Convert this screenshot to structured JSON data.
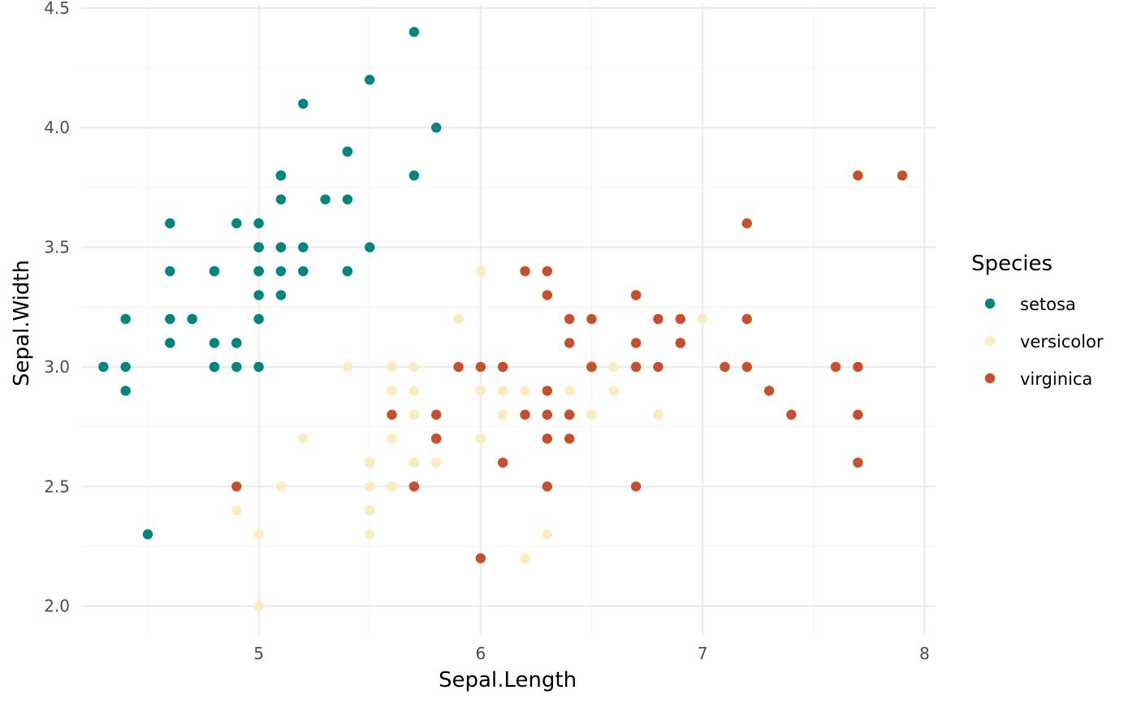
{
  "chart_data": {
    "type": "scatter",
    "title": "",
    "xlabel": "Sepal.Length",
    "ylabel": "Sepal.Width",
    "xlim": [
      4.2,
      8.05
    ],
    "ylim": [
      1.88,
      4.52
    ],
    "x_ticks": [
      5,
      6,
      7,
      8
    ],
    "x_tick_labels": [
      "5",
      "6",
      "7",
      "8"
    ],
    "x_minor_ticks": [
      4.5,
      5.5,
      6.5,
      7.5
    ],
    "y_ticks": [
      2.0,
      2.5,
      3.0,
      3.5,
      4.0,
      4.5
    ],
    "y_tick_labels": [
      "2.0",
      "2.5",
      "3.0",
      "3.5",
      "4.0",
      "4.5"
    ],
    "y_minor_ticks": [
      2.25,
      2.75,
      3.25,
      3.75,
      4.25
    ],
    "grid": true,
    "legend": {
      "title": "Species",
      "position": "right"
    },
    "series": [
      {
        "name": "setosa",
        "color": "#00857f",
        "points": [
          [
            5.1,
            3.5
          ],
          [
            4.9,
            3.0
          ],
          [
            4.7,
            3.2
          ],
          [
            4.6,
            3.1
          ],
          [
            5.0,
            3.6
          ],
          [
            5.4,
            3.9
          ],
          [
            4.6,
            3.4
          ],
          [
            5.0,
            3.4
          ],
          [
            4.4,
            2.9
          ],
          [
            4.9,
            3.1
          ],
          [
            5.4,
            3.7
          ],
          [
            4.8,
            3.4
          ],
          [
            4.8,
            3.0
          ],
          [
            4.3,
            3.0
          ],
          [
            5.8,
            4.0
          ],
          [
            5.7,
            4.4
          ],
          [
            5.4,
            3.9
          ],
          [
            5.1,
            3.5
          ],
          [
            5.7,
            3.8
          ],
          [
            5.1,
            3.8
          ],
          [
            5.4,
            3.4
          ],
          [
            5.1,
            3.7
          ],
          [
            4.6,
            3.6
          ],
          [
            5.1,
            3.3
          ],
          [
            4.8,
            3.4
          ],
          [
            5.0,
            3.0
          ],
          [
            5.0,
            3.4
          ],
          [
            5.2,
            3.5
          ],
          [
            5.2,
            3.4
          ],
          [
            4.7,
            3.2
          ],
          [
            4.8,
            3.1
          ],
          [
            5.4,
            3.4
          ],
          [
            5.2,
            4.1
          ],
          [
            5.5,
            4.2
          ],
          [
            4.9,
            3.1
          ],
          [
            5.0,
            3.2
          ],
          [
            5.5,
            3.5
          ],
          [
            4.9,
            3.6
          ],
          [
            4.4,
            3.0
          ],
          [
            5.1,
            3.4
          ],
          [
            5.0,
            3.5
          ],
          [
            4.5,
            2.3
          ],
          [
            4.4,
            3.2
          ],
          [
            5.0,
            3.5
          ],
          [
            5.1,
            3.8
          ],
          [
            4.8,
            3.0
          ],
          [
            5.1,
            3.8
          ],
          [
            4.6,
            3.2
          ],
          [
            5.3,
            3.7
          ],
          [
            5.0,
            3.3
          ]
        ]
      },
      {
        "name": "versicolor",
        "color": "#faecbe",
        "points": [
          [
            7.0,
            3.2
          ],
          [
            6.4,
            3.2
          ],
          [
            6.9,
            3.1
          ],
          [
            5.5,
            2.3
          ],
          [
            6.5,
            2.8
          ],
          [
            5.7,
            2.8
          ],
          [
            6.3,
            3.3
          ],
          [
            4.9,
            2.4
          ],
          [
            6.6,
            2.9
          ],
          [
            5.2,
            2.7
          ],
          [
            5.0,
            2.0
          ],
          [
            5.9,
            3.0
          ],
          [
            6.0,
            2.2
          ],
          [
            6.1,
            2.9
          ],
          [
            5.6,
            2.9
          ],
          [
            6.7,
            3.1
          ],
          [
            5.6,
            3.0
          ],
          [
            5.8,
            2.7
          ],
          [
            6.2,
            2.2
          ],
          [
            5.6,
            2.5
          ],
          [
            5.9,
            3.2
          ],
          [
            6.1,
            2.8
          ],
          [
            6.3,
            2.5
          ],
          [
            6.1,
            2.8
          ],
          [
            6.4,
            2.9
          ],
          [
            6.6,
            3.0
          ],
          [
            6.8,
            2.8
          ],
          [
            6.7,
            3.0
          ],
          [
            6.0,
            2.9
          ],
          [
            5.7,
            2.6
          ],
          [
            5.5,
            2.4
          ],
          [
            5.5,
            2.4
          ],
          [
            5.8,
            2.7
          ],
          [
            6.0,
            2.7
          ],
          [
            5.4,
            3.0
          ],
          [
            6.0,
            3.4
          ],
          [
            6.7,
            3.1
          ],
          [
            6.3,
            2.3
          ],
          [
            5.6,
            3.0
          ],
          [
            5.5,
            2.5
          ],
          [
            5.5,
            2.6
          ],
          [
            6.1,
            3.0
          ],
          [
            5.8,
            2.6
          ],
          [
            5.0,
            2.3
          ],
          [
            5.6,
            2.7
          ],
          [
            5.7,
            3.0
          ],
          [
            5.7,
            2.9
          ],
          [
            6.2,
            2.9
          ],
          [
            5.1,
            2.5
          ],
          [
            5.7,
            2.8
          ]
        ]
      },
      {
        "name": "virginica",
        "color": "#c64f2c",
        "points": [
          [
            6.3,
            3.3
          ],
          [
            5.8,
            2.7
          ],
          [
            7.1,
            3.0
          ],
          [
            6.3,
            2.9
          ],
          [
            6.5,
            3.0
          ],
          [
            7.6,
            3.0
          ],
          [
            4.9,
            2.5
          ],
          [
            7.3,
            2.9
          ],
          [
            6.7,
            2.5
          ],
          [
            7.2,
            3.6
          ],
          [
            6.5,
            3.2
          ],
          [
            6.4,
            2.7
          ],
          [
            6.8,
            3.0
          ],
          [
            5.7,
            2.5
          ],
          [
            5.8,
            2.8
          ],
          [
            6.4,
            3.2
          ],
          [
            6.5,
            3.0
          ],
          [
            7.7,
            3.8
          ],
          [
            7.7,
            2.6
          ],
          [
            6.0,
            2.2
          ],
          [
            6.9,
            3.2
          ],
          [
            5.6,
            2.8
          ],
          [
            7.7,
            2.8
          ],
          [
            6.3,
            2.7
          ],
          [
            6.7,
            3.3
          ],
          [
            7.2,
            3.2
          ],
          [
            6.2,
            2.8
          ],
          [
            6.1,
            3.0
          ],
          [
            6.4,
            2.8
          ],
          [
            7.2,
            3.0
          ],
          [
            7.4,
            2.8
          ],
          [
            7.9,
            3.8
          ],
          [
            6.4,
            2.8
          ],
          [
            6.3,
            2.8
          ],
          [
            6.1,
            2.6
          ],
          [
            7.7,
            3.0
          ],
          [
            6.3,
            3.4
          ],
          [
            6.4,
            3.1
          ],
          [
            6.0,
            3.0
          ],
          [
            6.9,
            3.1
          ],
          [
            6.7,
            3.1
          ],
          [
            6.9,
            3.1
          ],
          [
            5.8,
            2.7
          ],
          [
            6.8,
            3.2
          ],
          [
            6.7,
            3.3
          ],
          [
            6.7,
            3.0
          ],
          [
            6.3,
            2.5
          ],
          [
            6.5,
            3.0
          ],
          [
            6.2,
            3.4
          ],
          [
            5.9,
            3.0
          ]
        ]
      }
    ]
  }
}
